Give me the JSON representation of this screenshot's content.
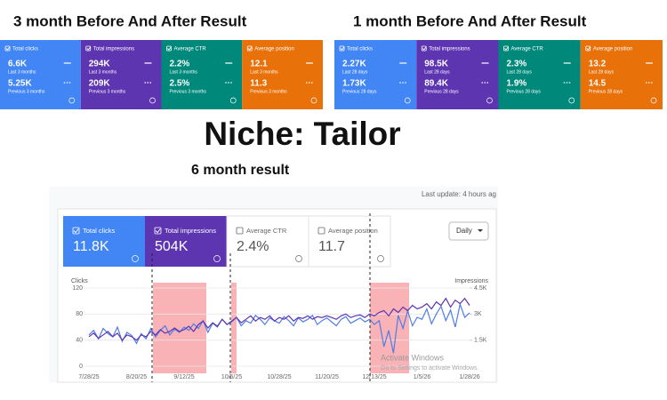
{
  "headings": {
    "three_month": "3 month Before And After Result",
    "one_month": "1 month Before And After Result",
    "niche": "Niche: Tailor",
    "six_month": "6 month result"
  },
  "three_month_cards": [
    {
      "label": "Total clicks",
      "current": "6.6K",
      "current_period": "Last 3 months",
      "previous": "5.25K",
      "previous_period": "Previous 3 months"
    },
    {
      "label": "Total impressions",
      "current": "294K",
      "current_period": "Last 3 months",
      "previous": "209K",
      "previous_period": "Previous 3 months"
    },
    {
      "label": "Average CTR",
      "current": "2.2%",
      "current_period": "Last 3 months",
      "previous": "2.5%",
      "previous_period": "Previous 3 months"
    },
    {
      "label": "Average position",
      "current": "12.1",
      "current_period": "Last 3 months",
      "previous": "11.3",
      "previous_period": "Previous 3 months"
    }
  ],
  "one_month_cards": [
    {
      "label": "Total clicks",
      "current": "2.27K",
      "current_period": "Last 28 days",
      "previous": "1.73K",
      "previous_period": "Previous 28 days"
    },
    {
      "label": "Total impressions",
      "current": "98.5K",
      "current_period": "Last 28 days",
      "previous": "89.4K",
      "previous_period": "Previous 28 days"
    },
    {
      "label": "Average CTR",
      "current": "2.3%",
      "current_period": "Last 28 days",
      "previous": "1.9%",
      "previous_period": "Previous 28 days"
    },
    {
      "label": "Average position",
      "current": "13.2",
      "current_period": "Last 28 days",
      "previous": "14.5",
      "previous_period": "Previous 28 days"
    }
  ],
  "six_month": {
    "last_update": "Last update: 4 hours ag",
    "dropdown": "Daily",
    "watermark_title": "Activate Windows",
    "watermark_text": "Go to Settings to activate Windows.",
    "cards": [
      {
        "label": "Total clicks",
        "value": "11.8K"
      },
      {
        "label": "Total impressions",
        "value": "504K"
      },
      {
        "label": "Average CTR",
        "value": "2.4%"
      },
      {
        "label": "Average position",
        "value": "11.7"
      }
    ]
  },
  "chart_data": {
    "type": "line",
    "y_label": "Clicks",
    "y2_label": "Impressions",
    "categories": [
      "7/28/25",
      null,
      null,
      null,
      null,
      null,
      null,
      null,
      null,
      null,
      "8/20/25",
      null,
      null,
      null,
      null,
      null,
      null,
      null,
      null,
      null,
      "9/12/25",
      null,
      null,
      null,
      null,
      null,
      null,
      null,
      null,
      null,
      "10/5/25",
      null,
      null,
      null,
      null,
      null,
      null,
      null,
      null,
      null,
      "10/28/25",
      null,
      null,
      null,
      null,
      null,
      null,
      null,
      null,
      null,
      "11/20/25",
      null,
      null,
      null,
      null,
      null,
      null,
      null,
      null,
      null,
      "12/13/25",
      null,
      null,
      null,
      null,
      null,
      null,
      null,
      null,
      null,
      "1/5/26",
      null,
      null,
      null,
      null,
      null,
      null,
      null,
      null,
      null,
      "1/28/26"
    ],
    "series": [
      {
        "color": "#4e7de9",
        "values": [
          48,
          55,
          42,
          58,
          50,
          45,
          60,
          38,
          52,
          47,
          35,
          50,
          42,
          58,
          45,
          55,
          62,
          48,
          57,
          52,
          60,
          55,
          65,
          58,
          70,
          52,
          66,
          60,
          72,
          64,
          68,
          75,
          62,
          70,
          66,
          78,
          72,
          64,
          74,
          70,
          66,
          76,
          70,
          62,
          74,
          68,
          72,
          78,
          64,
          70,
          74,
          68,
          62,
          72,
          76,
          66,
          70,
          74,
          68,
          72,
          64,
          70,
          30,
          55,
          20,
          78,
          58,
          85,
          62,
          75,
          72,
          88,
          65,
          80,
          92,
          70,
          86,
          60,
          95,
          75,
          82
        ]
      },
      {
        "color": "#5e35b1",
        "axis": "y2",
        "values": [
          1700,
          1900,
          1600,
          1800,
          2000,
          1700,
          1900,
          1500,
          1800,
          1700,
          1500,
          1800,
          1700,
          2000,
          1800,
          2100,
          1900,
          2000,
          2200,
          2000,
          2100,
          2300,
          2000,
          2400,
          2600,
          2200,
          2500,
          2300,
          2700,
          2400,
          2600,
          2800,
          2500,
          2700,
          2900,
          2600,
          2800,
          2700,
          2900,
          2600,
          2800,
          2700,
          2900,
          2600,
          2800,
          2750,
          2900,
          2700,
          2850,
          2800,
          2900,
          2800,
          2700,
          2900,
          3000,
          2800,
          2900,
          2950,
          2800,
          3000,
          2900,
          3100,
          3200,
          2900,
          3300,
          3100,
          3400,
          3200,
          3500,
          3300,
          3400,
          3600,
          3300,
          3700,
          3500,
          3900,
          3400,
          3800,
          3600,
          3900,
          3500
        ]
      }
    ],
    "ylim": [
      0,
      120
    ],
    "yticks": [
      0,
      40,
      80,
      120
    ],
    "y2lim": [
      0,
      4500
    ],
    "y2ticks": [
      {
        "value": 1500,
        "label": "1.5K"
      },
      {
        "value": 3000,
        "label": "3K"
      },
      {
        "value": 4500,
        "label": "4.5K"
      }
    ],
    "grid": true
  }
}
